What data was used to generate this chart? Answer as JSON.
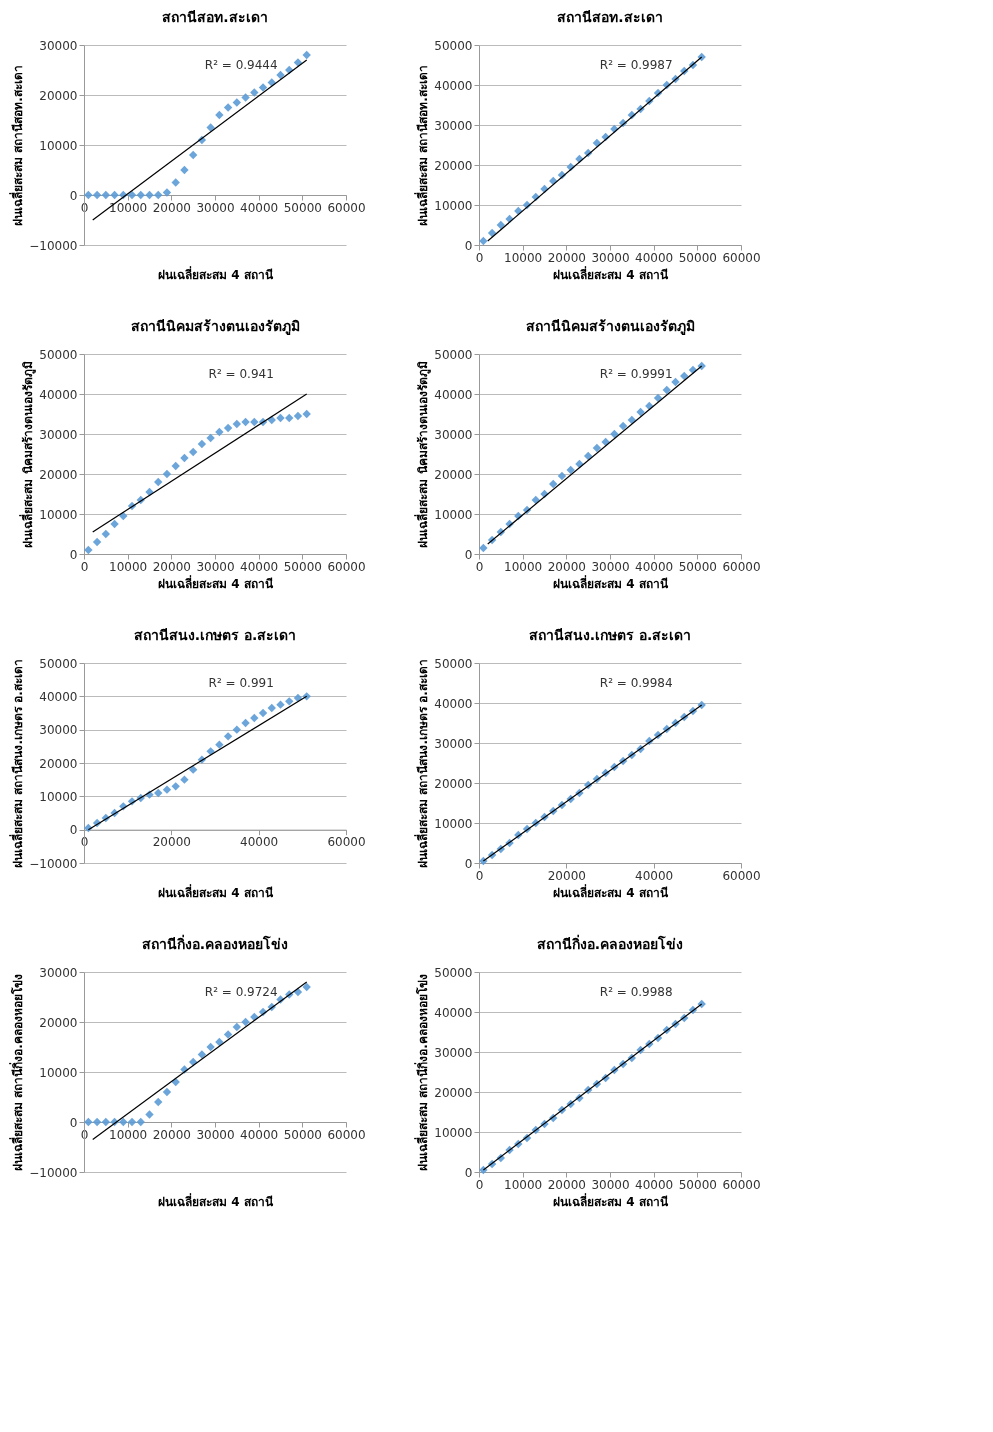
{
  "chart_data": [
    {
      "type": "scatter",
      "title": "สถานีสอท.สะเดา",
      "xlabel": "ฝนเฉลี่ยสะสม 4 สถานี",
      "ylabel": "ฝนเฉลี่ยสะสม สถานีสอท.สะเดา",
      "grid": "y",
      "xlim": [
        0,
        60000
      ],
      "xticks": [
        0,
        10000,
        20000,
        30000,
        40000,
        50000,
        60000
      ],
      "ylim": [
        -10000,
        30000
      ],
      "yticks": [
        -10000,
        0,
        10000,
        20000,
        30000
      ],
      "annotations": [
        "R² = 0.9444"
      ],
      "x": [
        1000,
        3000,
        5000,
        7000,
        9000,
        11000,
        13000,
        15000,
        17000,
        19000,
        21000,
        23000,
        25000,
        27000,
        29000,
        31000,
        33000,
        35000,
        37000,
        39000,
        41000,
        43000,
        45000,
        47000,
        49000,
        51000
      ],
      "series": [
        {
          "color": "#5b9bd5",
          "marker": "diamond",
          "values": [
            0,
            0,
            0,
            0,
            0,
            0,
            0,
            0,
            0,
            500,
            2500,
            5000,
            8000,
            11000,
            13500,
            16000,
            17500,
            18500,
            19500,
            20500,
            21500,
            22500,
            24000,
            25000,
            26500,
            28000
          ]
        },
        {
          "type": "line",
          "color": "#000000",
          "marker": "none",
          "x": [
            2000,
            51000
          ],
          "values": [
            -5000,
            27000
          ]
        }
      ]
    },
    {
      "type": "scatter",
      "title": "สถานีสอท.สะเดา",
      "xlabel": "ฝนเฉลี่ยสะสม 4 สถานี",
      "ylabel": "ฝนเฉลี่ยสะสม สถานีสอท.สะเดา",
      "grid": "y",
      "xlim": [
        0,
        60000
      ],
      "xticks": [
        0,
        10000,
        20000,
        30000,
        40000,
        50000,
        60000
      ],
      "ylim": [
        0,
        50000
      ],
      "yticks": [
        0,
        10000,
        20000,
        30000,
        40000,
        50000
      ],
      "annotations": [
        "R² = 0.9987"
      ],
      "x": [
        1000,
        3000,
        5000,
        7000,
        9000,
        11000,
        13000,
        15000,
        17000,
        19000,
        21000,
        23000,
        25000,
        27000,
        29000,
        31000,
        33000,
        35000,
        37000,
        39000,
        41000,
        43000,
        45000,
        47000,
        49000,
        51000
      ],
      "series": [
        {
          "color": "#5b9bd5",
          "marker": "diamond",
          "values": [
            1000,
            3000,
            5000,
            6500,
            8500,
            10000,
            12000,
            14000,
            16000,
            17500,
            19500,
            21500,
            23000,
            25500,
            27000,
            29000,
            30500,
            32500,
            34000,
            36000,
            38000,
            40000,
            41500,
            43500,
            45000,
            47000
          ]
        },
        {
          "type": "line",
          "color": "#000000",
          "marker": "none",
          "x": [
            2000,
            51000
          ],
          "values": [
            1000,
            47000
          ]
        }
      ]
    },
    {
      "type": "scatter",
      "title": "สถานีนิคมสร้างตนเองรัตภูมิ",
      "xlabel": "ฝนเฉลี่ยสะสม 4 สถานี",
      "ylabel": "ฝนเฉลี่ยสะสม นิคมสร้างตนเองรัตภูมิ",
      "grid": "y",
      "xlim": [
        0,
        60000
      ],
      "xticks": [
        0,
        10000,
        20000,
        30000,
        40000,
        50000,
        60000
      ],
      "ylim": [
        0,
        50000
      ],
      "yticks": [
        0,
        10000,
        20000,
        30000,
        40000,
        50000
      ],
      "annotations": [
        "R² = 0.941"
      ],
      "x": [
        1000,
        3000,
        5000,
        7000,
        9000,
        11000,
        13000,
        15000,
        17000,
        19000,
        21000,
        23000,
        25000,
        27000,
        29000,
        31000,
        33000,
        35000,
        37000,
        39000,
        41000,
        43000,
        45000,
        47000,
        49000,
        51000
      ],
      "series": [
        {
          "color": "#5b9bd5",
          "marker": "diamond",
          "values": [
            1000,
            3000,
            5000,
            7500,
            9500,
            12000,
            13500,
            15500,
            18000,
            20000,
            22000,
            24000,
            25500,
            27500,
            29000,
            30500,
            31500,
            32500,
            33000,
            33000,
            33000,
            33500,
            34000,
            34000,
            34500,
            35000
          ]
        },
        {
          "type": "line",
          "color": "#000000",
          "marker": "none",
          "x": [
            2000,
            51000
          ],
          "values": [
            5500,
            40000
          ]
        }
      ]
    },
    {
      "type": "scatter",
      "title": "สถานีนิคมสร้างตนเองรัตภูมิ",
      "xlabel": "ฝนเฉลี่ยสะสม 4 สถานี",
      "ylabel": "ฝนเฉลี่ยสะสม นิคมสร้างตนเองรัตภูมิ",
      "grid": "y",
      "xlim": [
        0,
        60000
      ],
      "xticks": [
        0,
        10000,
        20000,
        30000,
        40000,
        50000,
        60000
      ],
      "ylim": [
        0,
        50000
      ],
      "yticks": [
        0,
        10000,
        20000,
        30000,
        40000,
        50000
      ],
      "annotations": [
        "R² = 0.9991"
      ],
      "x": [
        1000,
        3000,
        5000,
        7000,
        9000,
        11000,
        13000,
        15000,
        17000,
        19000,
        21000,
        23000,
        25000,
        27000,
        29000,
        31000,
        33000,
        35000,
        37000,
        39000,
        41000,
        43000,
        45000,
        47000,
        49000,
        51000
      ],
      "series": [
        {
          "color": "#5b9bd5",
          "marker": "diamond",
          "values": [
            1500,
            3500,
            5500,
            7500,
            9500,
            11000,
            13500,
            15000,
            17500,
            19500,
            21000,
            22500,
            24500,
            26500,
            28000,
            30000,
            32000,
            33500,
            35500,
            37000,
            39000,
            41000,
            43000,
            44500,
            46000,
            47000
          ]
        },
        {
          "type": "line",
          "color": "#000000",
          "marker": "none",
          "x": [
            2000,
            51000
          ],
          "values": [
            2500,
            47000
          ]
        }
      ]
    },
    {
      "type": "scatter",
      "title": "สถานีสนง.เกษตร อ.สะเดา",
      "xlabel": "ฝนเฉลี่ยสะสม 4 สถานี",
      "ylabel": "ฝนเฉลี่ยสะสม สถานีสนง.เกษตร อ.สะเดา",
      "grid": "y",
      "xlim": [
        0,
        60000
      ],
      "xticks": [
        0,
        20000,
        40000,
        60000
      ],
      "ylim": [
        -10000,
        50000
      ],
      "yticks": [
        -10000,
        0,
        10000,
        20000,
        30000,
        40000,
        50000
      ],
      "annotations": [
        "R² = 0.991"
      ],
      "x": [
        1000,
        3000,
        5000,
        7000,
        9000,
        11000,
        13000,
        15000,
        17000,
        19000,
        21000,
        23000,
        25000,
        27000,
        29000,
        31000,
        33000,
        35000,
        37000,
        39000,
        41000,
        43000,
        45000,
        47000,
        49000,
        51000
      ],
      "series": [
        {
          "color": "#5b9bd5",
          "marker": "diamond",
          "values": [
            500,
            2000,
            3500,
            5000,
            7000,
            8500,
            9500,
            10500,
            11000,
            12000,
            13000,
            15000,
            18000,
            21000,
            23500,
            25500,
            28000,
            30000,
            32000,
            33500,
            35000,
            36500,
            37500,
            38500,
            39500,
            40000
          ]
        },
        {
          "type": "line",
          "color": "#000000",
          "marker": "none",
          "x": [
            1000,
            51000
          ],
          "values": [
            0,
            40000
          ]
        }
      ]
    },
    {
      "type": "scatter",
      "title": "สถานีสนง.เกษตร อ.สะเดา",
      "xlabel": "ฝนเฉลี่ยสะสม 4 สถานี",
      "ylabel": "ฝนเฉลี่ยสะสม สถานีสนง.เกษตร อ.สะเดา",
      "grid": "y",
      "xlim": [
        0,
        60000
      ],
      "xticks": [
        0,
        20000,
        40000,
        60000
      ],
      "ylim": [
        0,
        50000
      ],
      "yticks": [
        0,
        10000,
        20000,
        30000,
        40000,
        50000
      ],
      "annotations": [
        "R² = 0.9984"
      ],
      "x": [
        1000,
        3000,
        5000,
        7000,
        9000,
        11000,
        13000,
        15000,
        17000,
        19000,
        21000,
        23000,
        25000,
        27000,
        29000,
        31000,
        33000,
        35000,
        37000,
        39000,
        41000,
        43000,
        45000,
        47000,
        49000,
        51000
      ],
      "series": [
        {
          "color": "#5b9bd5",
          "marker": "diamond",
          "values": [
            500,
            2000,
            3500,
            5000,
            7000,
            8500,
            10000,
            11500,
            13000,
            14500,
            16000,
            17500,
            19500,
            21000,
            22500,
            24000,
            25500,
            27000,
            28500,
            30500,
            32000,
            33500,
            35000,
            36500,
            38000,
            39500
          ]
        },
        {
          "type": "line",
          "color": "#000000",
          "marker": "none",
          "x": [
            1000,
            51000
          ],
          "values": [
            500,
            39500
          ]
        }
      ]
    },
    {
      "type": "scatter",
      "title": "สถานีกิ่งอ.คลองหอยโข่ง",
      "xlabel": "ฝนเฉลี่ยสะสม 4 สถานี",
      "ylabel": "ฝนเฉลี่ยสะสม สถานีกิ่งอ.คลองหอยโข่ง",
      "grid": "y",
      "xlim": [
        0,
        60000
      ],
      "xticks": [
        0,
        10000,
        20000,
        30000,
        40000,
        50000,
        60000
      ],
      "ylim": [
        -10000,
        30000
      ],
      "yticks": [
        -10000,
        0,
        10000,
        20000,
        30000
      ],
      "annotations": [
        "R² = 0.9724"
      ],
      "x": [
        1000,
        3000,
        5000,
        7000,
        9000,
        11000,
        13000,
        15000,
        17000,
        19000,
        21000,
        23000,
        25000,
        27000,
        29000,
        31000,
        33000,
        35000,
        37000,
        39000,
        41000,
        43000,
        45000,
        47000,
        49000,
        51000
      ],
      "series": [
        {
          "color": "#5b9bd5",
          "marker": "diamond",
          "values": [
            0,
            0,
            0,
            0,
            0,
            0,
            0,
            1500,
            4000,
            6000,
            8000,
            10500,
            12000,
            13500,
            15000,
            16000,
            17500,
            19000,
            20000,
            21000,
            22000,
            23000,
            24500,
            25500,
            26000,
            27000
          ]
        },
        {
          "type": "line",
          "color": "#000000",
          "marker": "none",
          "x": [
            2000,
            51000
          ],
          "values": [
            -3500,
            28000
          ]
        }
      ]
    },
    {
      "type": "scatter",
      "title": "สถานีกิ่งอ.คลองหอยโข่ง",
      "xlabel": "ฝนเฉลี่ยสะสม 4 สถานี",
      "ylabel": "ฝนเฉลี่ยสะสม สถานีกิ่งอ.คลองหอยโข่ง",
      "grid": "y",
      "xlim": [
        0,
        60000
      ],
      "xticks": [
        0,
        10000,
        20000,
        30000,
        40000,
        50000,
        60000
      ],
      "ylim": [
        0,
        50000
      ],
      "yticks": [
        0,
        10000,
        20000,
        30000,
        40000,
        50000
      ],
      "annotations": [
        "R² = 0.9988"
      ],
      "x": [
        1000,
        3000,
        5000,
        7000,
        9000,
        11000,
        13000,
        15000,
        17000,
        19000,
        21000,
        23000,
        25000,
        27000,
        29000,
        31000,
        33000,
        35000,
        37000,
        39000,
        41000,
        43000,
        45000,
        47000,
        49000,
        51000
      ],
      "series": [
        {
          "color": "#5b9bd5",
          "marker": "diamond",
          "values": [
            500,
            2000,
            3500,
            5500,
            7000,
            8500,
            10500,
            12000,
            13500,
            15500,
            17000,
            18500,
            20500,
            22000,
            23500,
            25500,
            27000,
            28500,
            30500,
            32000,
            33500,
            35500,
            37000,
            38500,
            40500,
            42000
          ]
        },
        {
          "type": "line",
          "color": "#000000",
          "marker": "none",
          "x": [
            1000,
            51000
          ],
          "values": [
            500,
            42000
          ]
        }
      ]
    }
  ]
}
